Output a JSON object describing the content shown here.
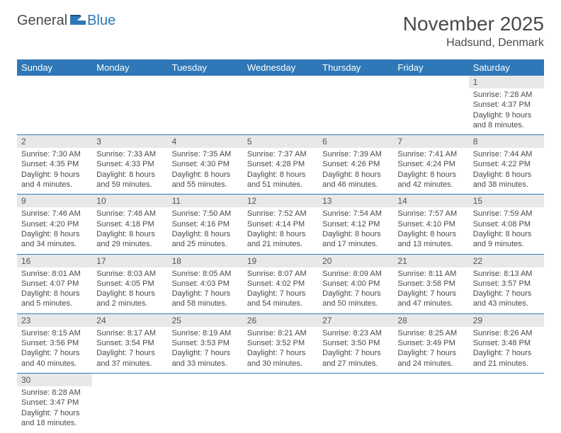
{
  "logo": {
    "general": "General",
    "blue": "Blue"
  },
  "title": "November 2025",
  "location": "Hadsund, Denmark",
  "colors": {
    "header_bg": "#2e78b7",
    "header_text": "#ffffff",
    "daynum_bg": "#e8e8e8",
    "row_border": "#2e78b7",
    "text": "#4a4a4a"
  },
  "weekdays": [
    "Sunday",
    "Monday",
    "Tuesday",
    "Wednesday",
    "Thursday",
    "Friday",
    "Saturday"
  ],
  "weeks": [
    [
      null,
      null,
      null,
      null,
      null,
      null,
      {
        "n": "1",
        "sr": "Sunrise: 7:28 AM",
        "ss": "Sunset: 4:37 PM",
        "d1": "Daylight: 9 hours",
        "d2": "and 8 minutes."
      }
    ],
    [
      {
        "n": "2",
        "sr": "Sunrise: 7:30 AM",
        "ss": "Sunset: 4:35 PM",
        "d1": "Daylight: 9 hours",
        "d2": "and 4 minutes."
      },
      {
        "n": "3",
        "sr": "Sunrise: 7:33 AM",
        "ss": "Sunset: 4:33 PM",
        "d1": "Daylight: 8 hours",
        "d2": "and 59 minutes."
      },
      {
        "n": "4",
        "sr": "Sunrise: 7:35 AM",
        "ss": "Sunset: 4:30 PM",
        "d1": "Daylight: 8 hours",
        "d2": "and 55 minutes."
      },
      {
        "n": "5",
        "sr": "Sunrise: 7:37 AM",
        "ss": "Sunset: 4:28 PM",
        "d1": "Daylight: 8 hours",
        "d2": "and 51 minutes."
      },
      {
        "n": "6",
        "sr": "Sunrise: 7:39 AM",
        "ss": "Sunset: 4:26 PM",
        "d1": "Daylight: 8 hours",
        "d2": "and 46 minutes."
      },
      {
        "n": "7",
        "sr": "Sunrise: 7:41 AM",
        "ss": "Sunset: 4:24 PM",
        "d1": "Daylight: 8 hours",
        "d2": "and 42 minutes."
      },
      {
        "n": "8",
        "sr": "Sunrise: 7:44 AM",
        "ss": "Sunset: 4:22 PM",
        "d1": "Daylight: 8 hours",
        "d2": "and 38 minutes."
      }
    ],
    [
      {
        "n": "9",
        "sr": "Sunrise: 7:46 AM",
        "ss": "Sunset: 4:20 PM",
        "d1": "Daylight: 8 hours",
        "d2": "and 34 minutes."
      },
      {
        "n": "10",
        "sr": "Sunrise: 7:48 AM",
        "ss": "Sunset: 4:18 PM",
        "d1": "Daylight: 8 hours",
        "d2": "and 29 minutes."
      },
      {
        "n": "11",
        "sr": "Sunrise: 7:50 AM",
        "ss": "Sunset: 4:16 PM",
        "d1": "Daylight: 8 hours",
        "d2": "and 25 minutes."
      },
      {
        "n": "12",
        "sr": "Sunrise: 7:52 AM",
        "ss": "Sunset: 4:14 PM",
        "d1": "Daylight: 8 hours",
        "d2": "and 21 minutes."
      },
      {
        "n": "13",
        "sr": "Sunrise: 7:54 AM",
        "ss": "Sunset: 4:12 PM",
        "d1": "Daylight: 8 hours",
        "d2": "and 17 minutes."
      },
      {
        "n": "14",
        "sr": "Sunrise: 7:57 AM",
        "ss": "Sunset: 4:10 PM",
        "d1": "Daylight: 8 hours",
        "d2": "and 13 minutes."
      },
      {
        "n": "15",
        "sr": "Sunrise: 7:59 AM",
        "ss": "Sunset: 4:08 PM",
        "d1": "Daylight: 8 hours",
        "d2": "and 9 minutes."
      }
    ],
    [
      {
        "n": "16",
        "sr": "Sunrise: 8:01 AM",
        "ss": "Sunset: 4:07 PM",
        "d1": "Daylight: 8 hours",
        "d2": "and 5 minutes."
      },
      {
        "n": "17",
        "sr": "Sunrise: 8:03 AM",
        "ss": "Sunset: 4:05 PM",
        "d1": "Daylight: 8 hours",
        "d2": "and 2 minutes."
      },
      {
        "n": "18",
        "sr": "Sunrise: 8:05 AM",
        "ss": "Sunset: 4:03 PM",
        "d1": "Daylight: 7 hours",
        "d2": "and 58 minutes."
      },
      {
        "n": "19",
        "sr": "Sunrise: 8:07 AM",
        "ss": "Sunset: 4:02 PM",
        "d1": "Daylight: 7 hours",
        "d2": "and 54 minutes."
      },
      {
        "n": "20",
        "sr": "Sunrise: 8:09 AM",
        "ss": "Sunset: 4:00 PM",
        "d1": "Daylight: 7 hours",
        "d2": "and 50 minutes."
      },
      {
        "n": "21",
        "sr": "Sunrise: 8:11 AM",
        "ss": "Sunset: 3:58 PM",
        "d1": "Daylight: 7 hours",
        "d2": "and 47 minutes."
      },
      {
        "n": "22",
        "sr": "Sunrise: 8:13 AM",
        "ss": "Sunset: 3:57 PM",
        "d1": "Daylight: 7 hours",
        "d2": "and 43 minutes."
      }
    ],
    [
      {
        "n": "23",
        "sr": "Sunrise: 8:15 AM",
        "ss": "Sunset: 3:56 PM",
        "d1": "Daylight: 7 hours",
        "d2": "and 40 minutes."
      },
      {
        "n": "24",
        "sr": "Sunrise: 8:17 AM",
        "ss": "Sunset: 3:54 PM",
        "d1": "Daylight: 7 hours",
        "d2": "and 37 minutes."
      },
      {
        "n": "25",
        "sr": "Sunrise: 8:19 AM",
        "ss": "Sunset: 3:53 PM",
        "d1": "Daylight: 7 hours",
        "d2": "and 33 minutes."
      },
      {
        "n": "26",
        "sr": "Sunrise: 8:21 AM",
        "ss": "Sunset: 3:52 PM",
        "d1": "Daylight: 7 hours",
        "d2": "and 30 minutes."
      },
      {
        "n": "27",
        "sr": "Sunrise: 8:23 AM",
        "ss": "Sunset: 3:50 PM",
        "d1": "Daylight: 7 hours",
        "d2": "and 27 minutes."
      },
      {
        "n": "28",
        "sr": "Sunrise: 8:25 AM",
        "ss": "Sunset: 3:49 PM",
        "d1": "Daylight: 7 hours",
        "d2": "and 24 minutes."
      },
      {
        "n": "29",
        "sr": "Sunrise: 8:26 AM",
        "ss": "Sunset: 3:48 PM",
        "d1": "Daylight: 7 hours",
        "d2": "and 21 minutes."
      }
    ],
    [
      {
        "n": "30",
        "sr": "Sunrise: 8:28 AM",
        "ss": "Sunset: 3:47 PM",
        "d1": "Daylight: 7 hours",
        "d2": "and 18 minutes."
      },
      null,
      null,
      null,
      null,
      null,
      null
    ]
  ]
}
